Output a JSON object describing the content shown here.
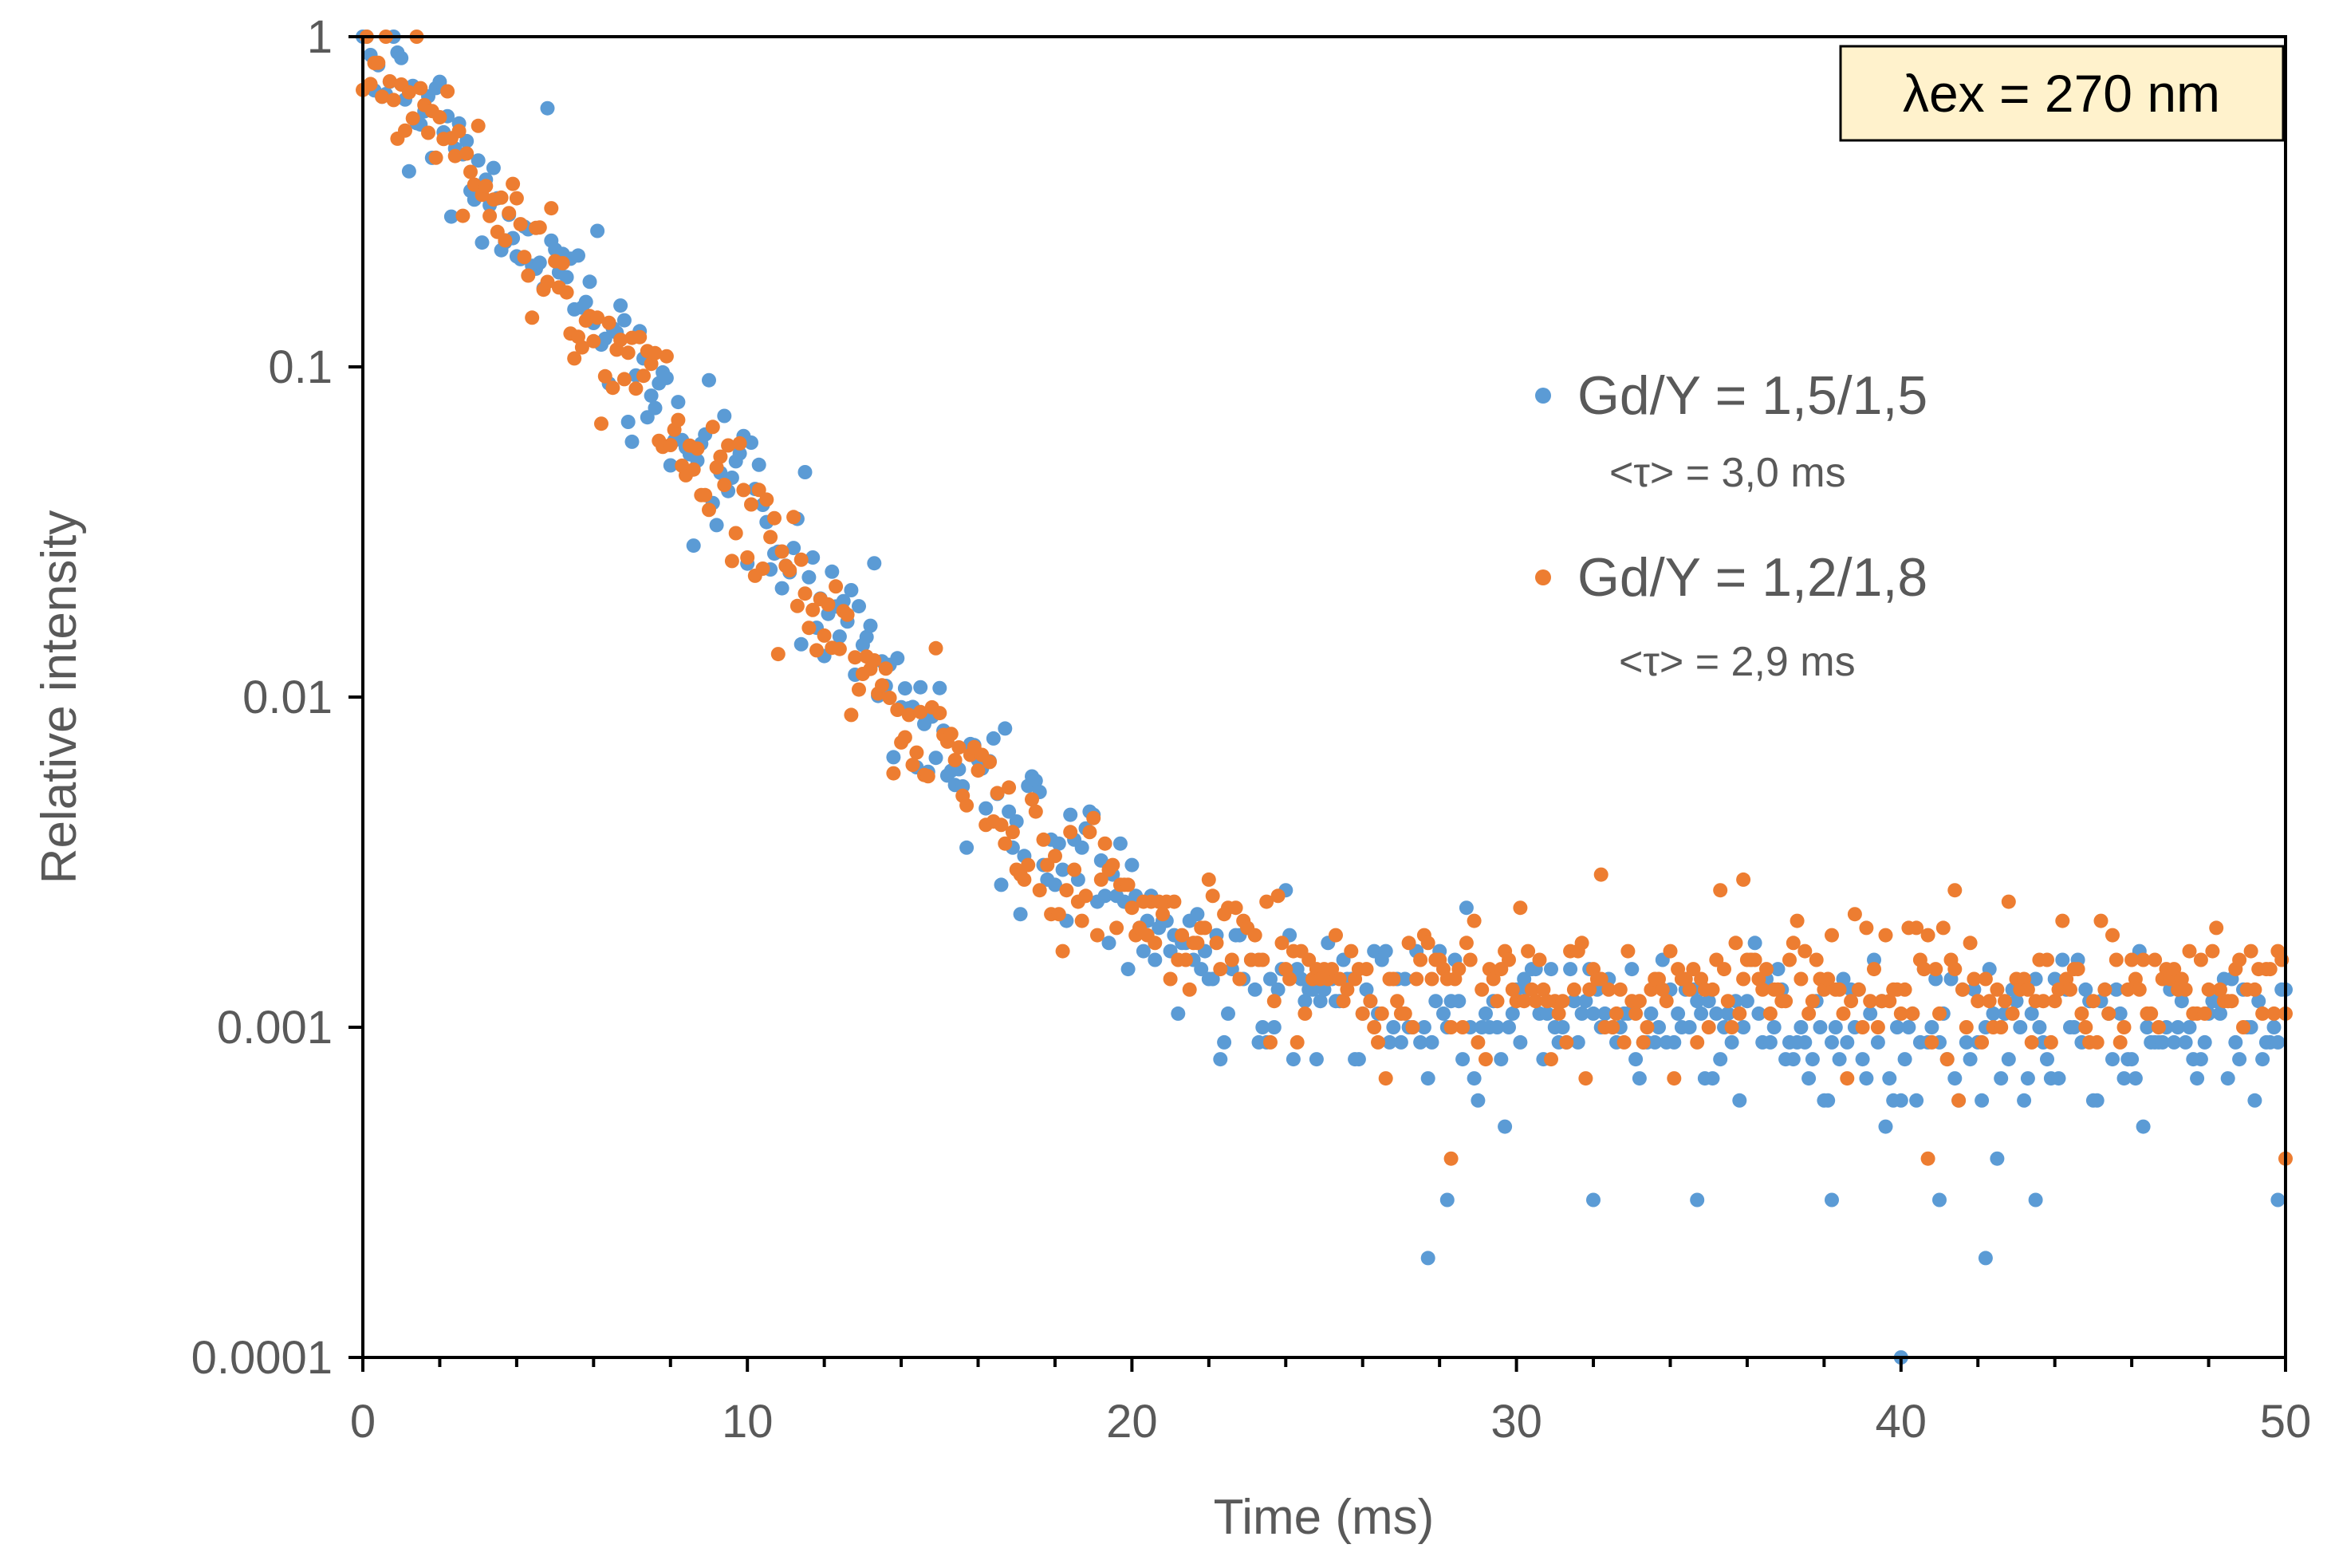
{
  "chart_data": {
    "type": "scatter",
    "title": "",
    "xlabel": "Time (ms)",
    "ylabel": "Relative intensity",
    "xlim": [
      0,
      50
    ],
    "ylim": [
      0.0001,
      1
    ],
    "yscale": "log",
    "x_ticks": [
      0,
      10,
      20,
      30,
      40,
      50
    ],
    "x_tick_labels": [
      "0",
      "10",
      "20",
      "30",
      "40",
      "50"
    ],
    "y_ticks": [
      1,
      0.1,
      0.01,
      0.001,
      0.0001
    ],
    "y_tick_labels": [
      "1",
      "0.1",
      "0.01",
      "0.001",
      "0.0001"
    ],
    "grid": false,
    "legend_position": "right-middle",
    "annotation": "λex = 270 nm",
    "series": [
      {
        "name": "Gd/Y = 1,5/1,5",
        "subtitle": "<τ> = 3,0 ms",
        "color": "#5B9BD5",
        "model": {
          "initial": 1.0,
          "lifetime_ms": 3.0,
          "background": 0.001,
          "step_ms": 0.1,
          "noise_decades": 0.12
        },
        "outliers": [
          {
            "x": 27.7,
            "y": 0.0002
          },
          {
            "x": 42.2,
            "y": 0.0002
          },
          {
            "x": 40.0,
            "y": 0.0001
          },
          {
            "x": 28.2,
            "y": 0.0003
          },
          {
            "x": 32.0,
            "y": 0.0003
          },
          {
            "x": 34.7,
            "y": 0.0003
          },
          {
            "x": 38.2,
            "y": 0.0003
          },
          {
            "x": 41.0,
            "y": 0.0003
          },
          {
            "x": 43.5,
            "y": 0.0003
          },
          {
            "x": 49.8,
            "y": 0.0003
          }
        ]
      },
      {
        "name": "Gd/Y = 1,2/1,8",
        "subtitle": "<τ> = 2,9 ms",
        "color": "#ED7D31",
        "model": {
          "initial": 1.0,
          "lifetime_ms": 2.9,
          "background": 0.0013,
          "step_ms": 0.1,
          "noise_decades": 0.1
        },
        "outliers": [
          {
            "x": 28.3,
            "y": 0.0004
          },
          {
            "x": 40.7,
            "y": 0.0004
          },
          {
            "x": 50.0,
            "y": 0.0004
          },
          {
            "x": 32.2,
            "y": 0.0029
          },
          {
            "x": 35.9,
            "y": 0.0028
          },
          {
            "x": 41.4,
            "y": 0.0026
          }
        ]
      }
    ]
  }
}
